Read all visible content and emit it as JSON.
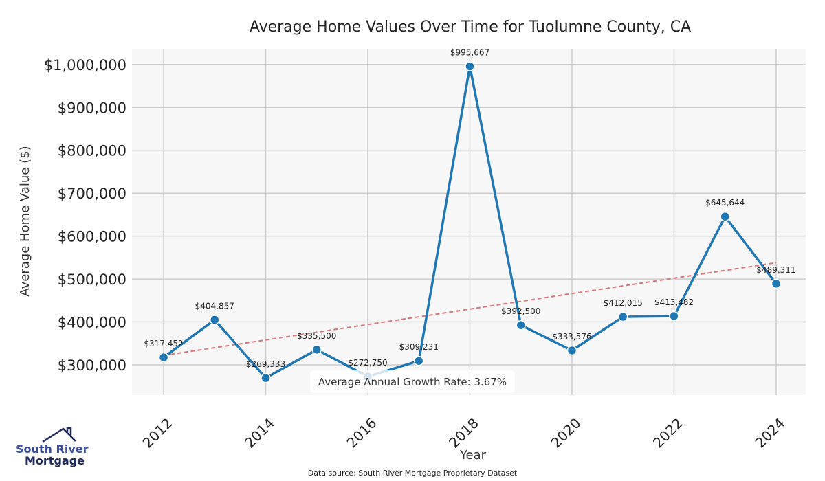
{
  "chart_data": {
    "type": "line",
    "title": "Average Home Values Over Time for Tuolumne County, CA",
    "xlabel": "Year",
    "ylabel": "Average Home Value ($)",
    "x": [
      2012,
      2013,
      2014,
      2015,
      2016,
      2017,
      2018,
      2019,
      2020,
      2021,
      2022,
      2023,
      2024
    ],
    "series": [
      {
        "name": "Average Home Value",
        "color": "#1f77b4",
        "values": [
          317452,
          404857,
          269333,
          335500,
          272750,
          309231,
          995667,
          392500,
          333576,
          412015,
          413482,
          645644,
          489311
        ],
        "labels": [
          "$317,452",
          "$404,857",
          "$269,333",
          "$335,500",
          "$272,750",
          "$309,231",
          "$995,667",
          "$392,500",
          "$333,576",
          "$412,015",
          "$413,482",
          "$645,644",
          "$489,311"
        ]
      }
    ],
    "trend": {
      "name": "Trend",
      "color": "#d9777a",
      "x": [
        2012,
        2024
      ],
      "values": [
        322000,
        538000
      ]
    },
    "xticks": [
      2012,
      2014,
      2016,
      2018,
      2020,
      2022,
      2024
    ],
    "xtick_labels": [
      "2012",
      "2014",
      "2016",
      "2018",
      "2020",
      "2022",
      "2024"
    ],
    "yticks": [
      300000,
      400000,
      500000,
      600000,
      700000,
      800000,
      900000,
      1000000
    ],
    "ytick_labels": [
      "$300,000",
      "$400,000",
      "$500,000",
      "$600,000",
      "$700,000",
      "$800,000",
      "$900,000",
      "$1,000,000"
    ],
    "xlim": [
      2011.38,
      2024.58
    ],
    "ylim": [
      229500,
      1035000
    ],
    "grid": true,
    "annotation": "Average Annual Growth Rate: 3.67%"
  },
  "footer": {
    "source": "Data source: South River Mortgage Proprietary Dataset",
    "logo_line1": "South River",
    "logo_line2": "Mortgage"
  },
  "colors": {
    "plot_bg": "#f7f7f7",
    "grid": "#cccccc",
    "logo_blue": "#3b4fa0",
    "logo_dark": "#1f2a5c"
  }
}
